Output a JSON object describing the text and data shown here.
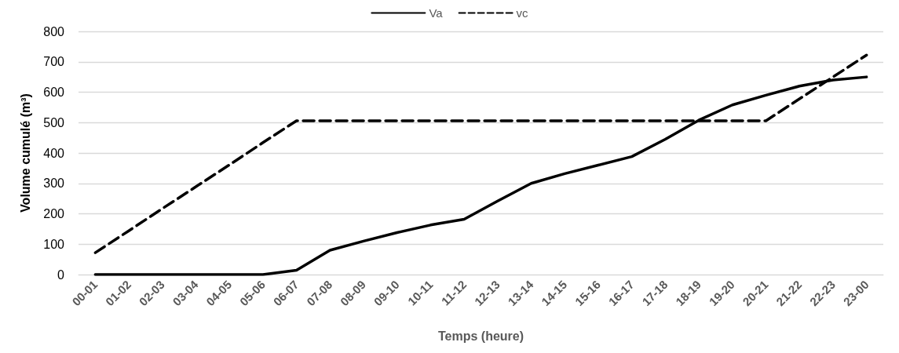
{
  "chart_data": {
    "type": "line",
    "xlabel": "Temps (heure)",
    "ylabel": "Volume cumulé (m³)",
    "categories": [
      "00-01",
      "01-02",
      "02-03",
      "03-04",
      "04-05",
      "05-06",
      "06-07",
      "07-08",
      "08-09",
      "09-10",
      "10-11",
      "11-12",
      "12-13",
      "13-14",
      "14-15",
      "15-16",
      "16-17",
      "17-18",
      "18-19",
      "19-20",
      "20-21",
      "21-22",
      "22-23",
      "23-00"
    ],
    "series": [
      {
        "name": "Va",
        "color": "#000000",
        "line_style": "solid",
        "values": [
          0,
          0,
          0,
          0,
          0,
          0,
          14,
          80,
          110,
          138,
          163,
          182,
          242,
          300,
          332,
          360,
          388,
          445,
          508,
          558,
          590,
          620,
          640,
          650
        ]
      },
      {
        "name": "vc",
        "color": "#000000",
        "line_style": "dashed",
        "values": [
          72,
          144,
          217,
          289,
          361,
          434,
          506,
          506,
          506,
          506,
          506,
          506,
          506,
          506,
          506,
          506,
          506,
          506,
          506,
          506,
          506,
          578,
          650,
          722
        ]
      }
    ],
    "ylim": [
      0,
      800
    ],
    "yticks": [
      0,
      100,
      200,
      300,
      400,
      500,
      600,
      700,
      800
    ],
    "grid": "y",
    "legend": "top",
    "marker": "none"
  }
}
